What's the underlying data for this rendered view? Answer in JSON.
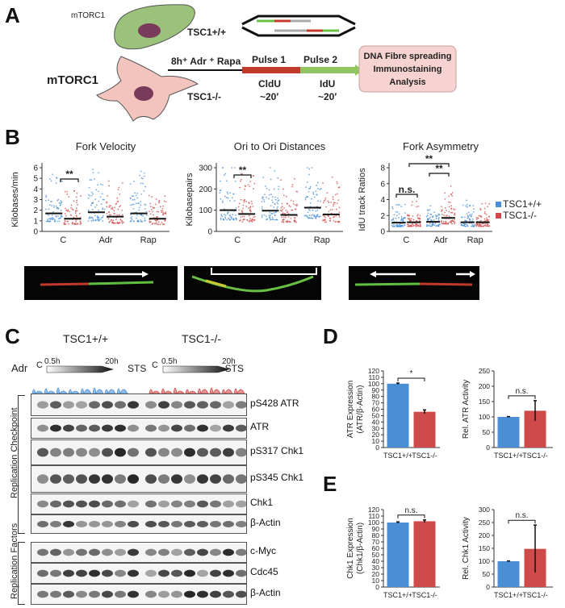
{
  "colors": {
    "tsc_pos": "#4a8fd6",
    "tsc_neg": "#cf4b4b",
    "green": "#6abf45",
    "red": "#c0392b"
  },
  "panel_a": {
    "label": "A",
    "mtorc1_top": "mTORC1",
    "mtorc1_bottom": "mTORC1",
    "tsc_pos": "TSC1+/+",
    "tsc_neg": "TSC1-/-",
    "treatment": "8h⁺ Adr ⁺ Rapa",
    "pulse1": "Pulse 1",
    "pulse2": "Pulse 2",
    "cldu": "CldU",
    "idu": "IdU",
    "time1": "~20′",
    "time2": "~20′",
    "analysis": [
      "DNA Fibre spreading",
      "Immunostaining",
      "Analysis"
    ]
  },
  "panel_b": {
    "label": "B"
  },
  "panel_c": {
    "label": "C",
    "tsc_pos": "TSC1+/+",
    "tsc_neg": "TSC1-/-",
    "adr": "Adr",
    "c": "C",
    "t05": "0.5h",
    "t20": "20h",
    "sts": "STS",
    "c2": "C",
    "t05b": "0.5h",
    "t20b": "20h",
    "sts2": "STS",
    "group1": "Replication Checkpoint",
    "group2": "Replication Factors",
    "blots": [
      "pS428 ATR",
      "ATR",
      "pS317 Chk1",
      "pS345 Chk1",
      "Chk1",
      "β-Actin",
      "c-Myc",
      "Cdc45",
      "β-Actin"
    ]
  },
  "panel_d": {
    "label": "D"
  },
  "panel_e": {
    "label": "E"
  },
  "chart_data": [
    {
      "type": "scatter",
      "title": "Fork Velocity",
      "ylabel": "Kilobases/min",
      "categories": [
        "C",
        "Adr",
        "Rap"
      ],
      "ylim": [
        0,
        6
      ],
      "yticks": [
        0,
        1,
        2,
        3,
        4,
        5,
        6
      ],
      "series": [
        {
          "name": "TSC1+/+",
          "color": "#4a8fd6",
          "medians": [
            1.7,
            1.8,
            1.7
          ]
        },
        {
          "name": "TSC1-/-",
          "color": "#cf4b4b",
          "medians": [
            1.2,
            1.4,
            1.2
          ]
        }
      ],
      "annotations": [
        {
          "text": "**",
          "between": [
            "C TSC1+/+",
            "C TSC1-/-"
          ]
        }
      ]
    },
    {
      "type": "scatter",
      "title": "Ori to Ori Distances",
      "ylabel": "Kilobasepairs",
      "categories": [
        "C",
        "Adr",
        "Rap"
      ],
      "ylim": [
        0,
        300
      ],
      "yticks": [
        0,
        100,
        200,
        300
      ],
      "series": [
        {
          "name": "TSC1+/+",
          "color": "#4a8fd6",
          "medians": [
            100,
            98,
            112
          ]
        },
        {
          "name": "TSC1-/-",
          "color": "#cf4b4b",
          "medians": [
            82,
            78,
            80
          ]
        }
      ],
      "annotations": [
        {
          "text": "**",
          "between": [
            "C TSC1+/+",
            "C TSC1-/-"
          ]
        }
      ]
    },
    {
      "type": "scatter",
      "title": "Fork Asymmetry",
      "ylabel": "IdU track Ratios",
      "categories": [
        "C",
        "Adr",
        "Rap"
      ],
      "ylim": [
        0,
        8
      ],
      "yticks": [
        0,
        2,
        4,
        6,
        8
      ],
      "legend": [
        "TSC1+/+",
        "TSC1-/-"
      ],
      "legend_position": "right",
      "series": [
        {
          "name": "TSC1+/+",
          "color": "#4a8fd6",
          "medians": [
            1.1,
            1.2,
            1.15
          ]
        },
        {
          "name": "TSC1-/-",
          "color": "#cf4b4b",
          "medians": [
            1.15,
            1.7,
            1.15
          ]
        }
      ],
      "annotations": [
        {
          "text": "n.s.",
          "between": [
            "C TSC1+/+",
            "C TSC1-/-"
          ]
        },
        {
          "text": "**",
          "between": [
            "Adr TSC1+/+",
            "Adr TSC1-/-"
          ]
        },
        {
          "text": "**",
          "between": [
            "C TSC1-/-",
            "Adr TSC1-/-"
          ]
        }
      ]
    },
    {
      "type": "bar",
      "ylabel": "ATR Expression\n(ATR/β-Actin)",
      "categories": [
        "TSC1+/+",
        "TSC1-/-"
      ],
      "values": [
        100,
        56
      ],
      "errors": [
        1,
        3
      ],
      "ylim": [
        0,
        120
      ],
      "yticks": [
        0,
        10,
        20,
        30,
        40,
        50,
        60,
        70,
        80,
        90,
        100,
        110,
        120
      ],
      "significance": "*"
    },
    {
      "type": "bar",
      "ylabel": "Rel. ATR Activity",
      "categories": [
        "TSC1+/+",
        "TSC1-/-"
      ],
      "values": [
        100,
        120
      ],
      "errors": [
        1,
        33
      ],
      "ylim": [
        0,
        250
      ],
      "yticks": [
        0,
        50,
        100,
        150,
        200,
        250
      ],
      "significance": "n.s."
    },
    {
      "type": "bar",
      "ylabel": "Chk1 Expression\n(Chk1/β-Actin)",
      "categories": [
        "TSC1+/+",
        "TSC1-/-"
      ],
      "values": [
        100,
        102
      ],
      "errors": [
        1,
        2
      ],
      "ylim": [
        0,
        120
      ],
      "yticks": [
        0,
        10,
        20,
        30,
        40,
        50,
        60,
        70,
        80,
        90,
        100,
        110,
        120
      ],
      "significance": "n.s."
    },
    {
      "type": "bar",
      "ylabel": "Rel. Chk1 Activity",
      "categories": [
        "TSC1+/+",
        "TSC1-/-"
      ],
      "values": [
        100,
        148
      ],
      "errors": [
        1,
        92
      ],
      "ylim": [
        0,
        300
      ],
      "yticks": [
        0,
        50,
        100,
        150,
        200,
        250,
        300
      ],
      "significance": "n.s."
    }
  ]
}
